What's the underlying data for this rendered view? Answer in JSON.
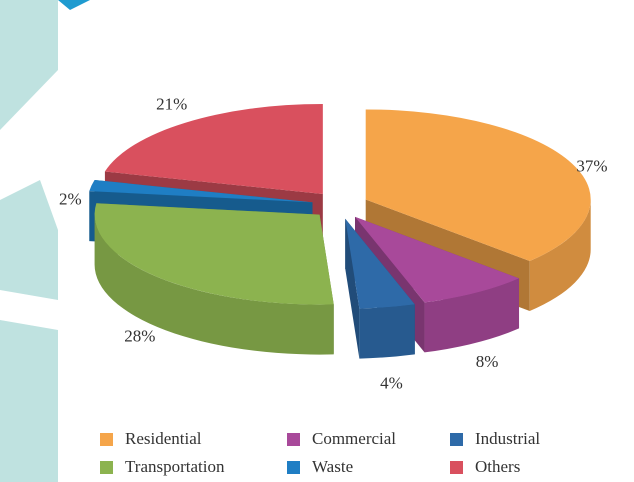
{
  "chart_data": {
    "type": "pie",
    "categories": [
      "Residential",
      "Commercial",
      "Industrial",
      "Transportation",
      "Waste",
      "Others"
    ],
    "values": [
      37,
      8,
      4,
      28,
      2,
      21
    ],
    "value_labels": [
      "37%",
      "8%",
      "4%",
      "28%",
      "2%",
      "21%"
    ],
    "colors": [
      "#f5a54a",
      "#a8499a",
      "#2e6aa8",
      "#8cb34f",
      "#1f7ec4",
      "#d9505e"
    ],
    "legend": "bottom"
  }
}
